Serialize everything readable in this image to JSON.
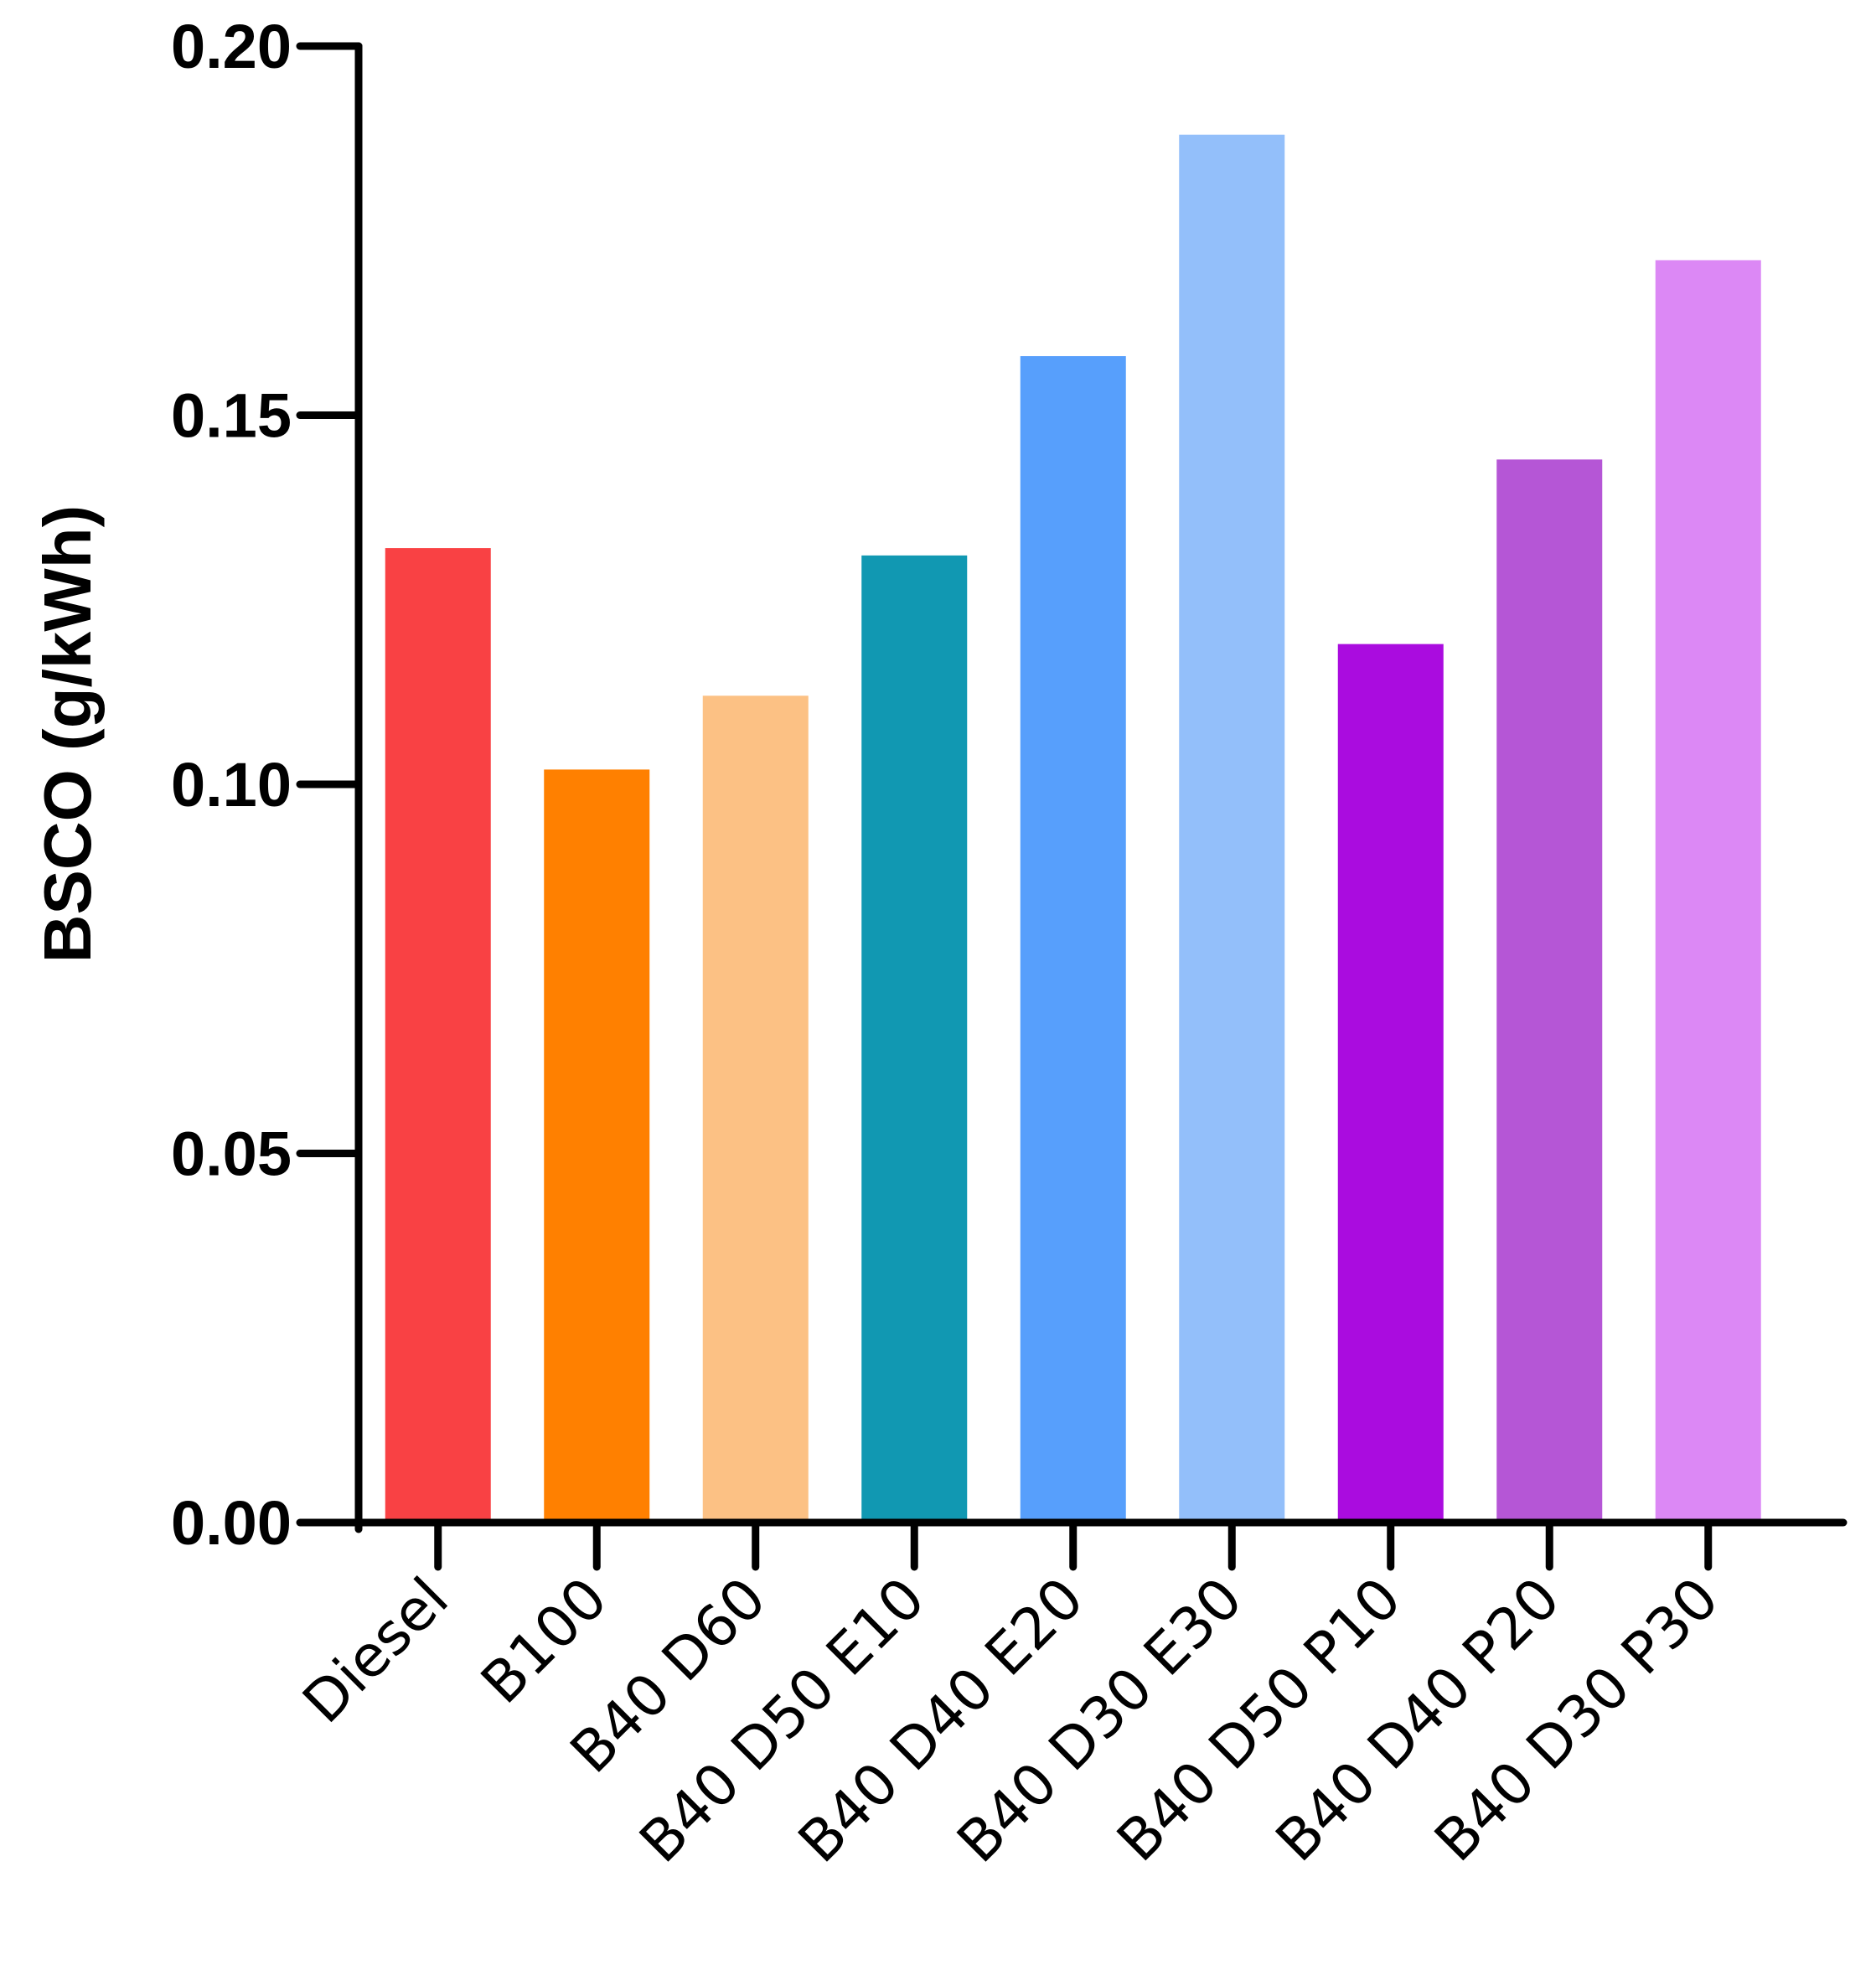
{
  "chart_data": {
    "type": "bar",
    "title": "",
    "xlabel": "",
    "ylabel": "BSCO (g/kWh)",
    "ylim": [
      0,
      0.2
    ],
    "yticks": [
      "0.00",
      "0.05",
      "0.10",
      "0.15",
      "0.20"
    ],
    "ytick_values": [
      0,
      0.05,
      0.1,
      0.15,
      0.2
    ],
    "grid": false,
    "legend": "none",
    "categories": [
      "Diesel",
      "B100",
      "B40 D60",
      "B40 D50 E10",
      "B40 D40 E20",
      "B40 D30 E30",
      "B40 D50 P10",
      "B40 D40 P20",
      "B40 D30 P30"
    ],
    "values": [
      0.132,
      0.102,
      0.112,
      0.131,
      0.158,
      0.188,
      0.119,
      0.144,
      0.171
    ],
    "colors": [
      "#f94144",
      "#ff8000",
      "#fcc184",
      "#1198b2",
      "#579ffc",
      "#93bffa",
      "#aa0cdf",
      "#b556d6",
      "#dc88f5"
    ]
  }
}
